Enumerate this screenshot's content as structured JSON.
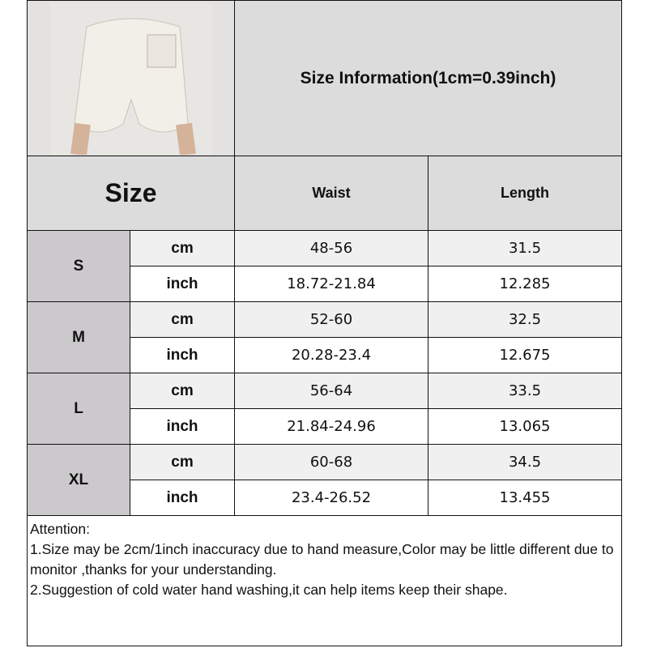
{
  "header": {
    "title": "Size Information(1cm=0.39inch)"
  },
  "table": {
    "size_header": "Size",
    "columns": [
      "Waist",
      "Length"
    ],
    "rows": [
      {
        "size": "S",
        "cm": {
          "unit": "cm",
          "waist": "48-56",
          "length": "31.5"
        },
        "inch": {
          "unit": "inch",
          "waist": "18.72-21.84",
          "length": "12.285"
        }
      },
      {
        "size": "M",
        "cm": {
          "unit": "cm",
          "waist": "52-60",
          "length": "32.5"
        },
        "inch": {
          "unit": "inch",
          "waist": "20.28-23.4",
          "length": "12.675"
        }
      },
      {
        "size": "L",
        "cm": {
          "unit": "cm",
          "waist": "56-64",
          "length": "33.5"
        },
        "inch": {
          "unit": "inch",
          "waist": "21.84-24.96",
          "length": "13.065"
        }
      },
      {
        "size": "XL",
        "cm": {
          "unit": "cm",
          "waist": "60-68",
          "length": "34.5"
        },
        "inch": {
          "unit": "inch",
          "waist": "23.4-26.52",
          "length": "13.455"
        }
      }
    ]
  },
  "notes": {
    "heading": "Attention:",
    "lines": [
      "1.Size may be 2cm/1inch inaccuracy due to hand measure,Color may be little different due to monitor ,thanks for your understanding.",
      "2.Suggestion of cold water hand washing,it can help items keep their shape."
    ]
  },
  "colors": {
    "header_bg": "#dcdcdc",
    "size_bg": "#cbc9cb",
    "cm_row_bg": "#f0f0f0",
    "border": "#111111"
  }
}
